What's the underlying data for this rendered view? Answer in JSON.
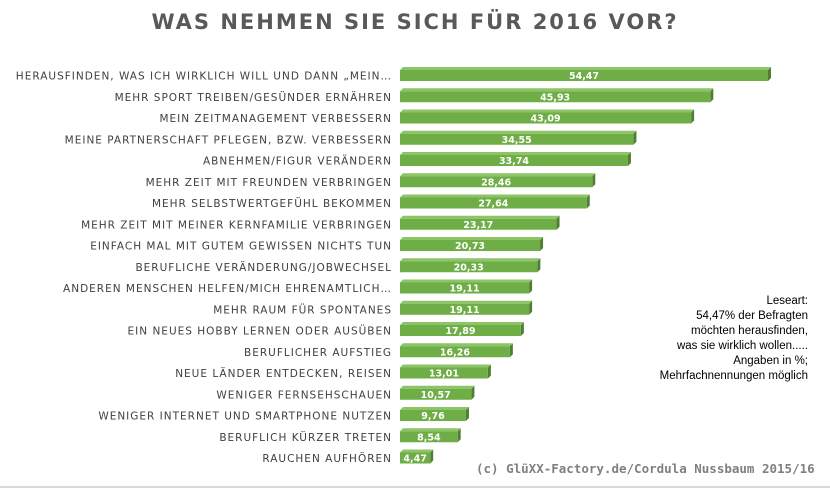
{
  "title": "WAS NEHMEN SIE SICH FÜR 2016 VOR?",
  "note": {
    "lines": [
      "Leseart:",
      "54,47% der Befragten",
      "möchten herausfinden,",
      "was sie wirklich wollen.....",
      "Angaben in %;",
      "Mehrfachnennungen möglich"
    ]
  },
  "source": "(c) GlüXX-Factory.de/Cordula Nussbaum 2015/16",
  "colors": {
    "bar": "#6fad47",
    "bar_shadow": "#4f7f33",
    "text": "#404040",
    "title": "#595959"
  },
  "chart_data": {
    "type": "bar",
    "orientation": "horizontal",
    "title": "WAS NEHMEN SIE SICH FÜR 2016 VOR?",
    "xlabel": "",
    "ylabel": "",
    "xlim": [
      0,
      60
    ],
    "grid": false,
    "categories": [
      "HERAUSFINDEN, WAS ICH WIRKLICH WILL UND DANN „MEIN…",
      "MEHR SPORT TREIBEN/GESÜNDER ERNÄHREN",
      "MEIN ZEITMANAGEMENT VERBESSERN",
      "MEINE PARTNERSCHAFT PFLEGEN, BZW. VERBESSERN",
      "ABNEHMEN/FIGUR VERÄNDERN",
      "MEHR ZEIT MIT FREUNDEN VERBRINGEN",
      "MEHR SELBSTWERTGEFÜHL BEKOMMEN",
      "MEHR ZEIT MIT MEINER KERNFAMILIE VERBRINGEN",
      "EINFACH MAL MIT GUTEM GEWISSEN NICHTS TUN",
      "BERUFLICHE VERÄNDERUNG/JOBWECHSEL",
      "ANDEREN MENSCHEN HELFEN/MICH EHRENAMTLICH…",
      "MEHR RAUM FÜR SPONTANES",
      "EIN NEUES HOBBY LERNEN ODER AUSÜBEN",
      "BERUFLICHER AUFSTIEG",
      "NEUE LÄNDER ENTDECKEN, REISEN",
      "WENIGER FERNSEHSCHAUEN",
      "WENIGER INTERNET UND SMARTPHONE NUTZEN",
      "BERUFLICH KÜRZER TRETEN",
      "RAUCHEN AUFHÖREN"
    ],
    "values": [
      54.47,
      45.93,
      43.09,
      34.55,
      33.74,
      28.46,
      27.64,
      23.17,
      20.73,
      20.33,
      19.11,
      19.11,
      17.89,
      16.26,
      13.01,
      10.57,
      9.76,
      8.54,
      4.47
    ],
    "value_labels": [
      "54,47",
      "45,93",
      "43,09",
      "34,55",
      "33,74",
      "28,46",
      "27,64",
      "23,17",
      "20,73",
      "20,33",
      "19,11",
      "19,11",
      "17,89",
      "16,26",
      "13,01",
      "10,57",
      "9,76",
      "8,54",
      "4,47"
    ]
  }
}
